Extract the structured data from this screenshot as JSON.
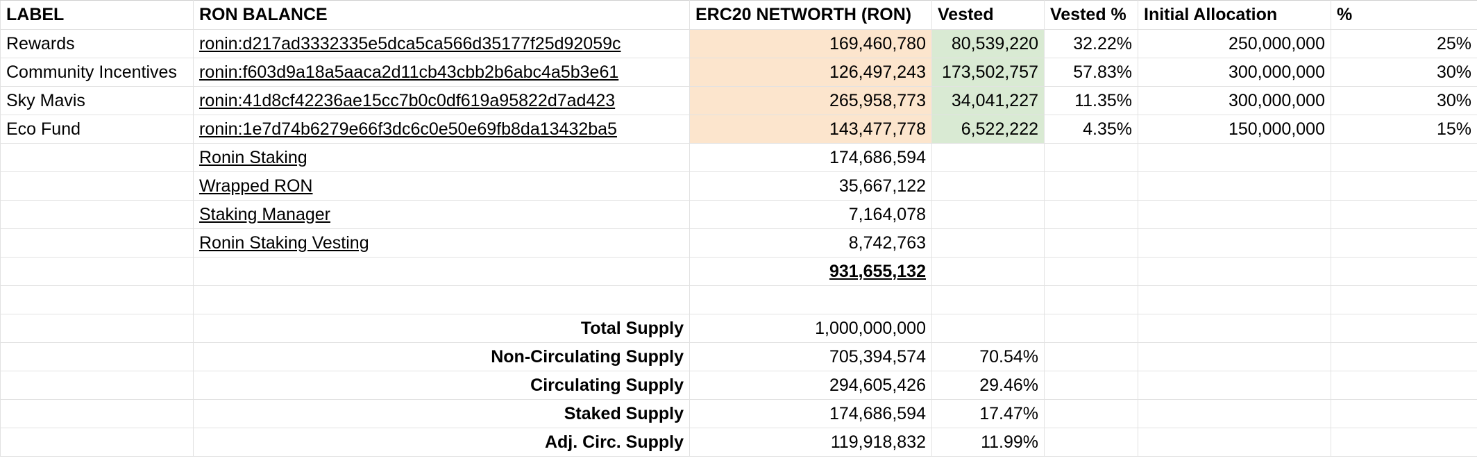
{
  "colors": {
    "networth_fill": "#fce5cd",
    "vested_fill": "#d9ead3",
    "gridline": "#e2e2e2"
  },
  "headers": {
    "label": "LABEL",
    "ron_balance": "RON BALANCE",
    "erc20_networth": "ERC20 NETWORTH (RON)",
    "vested": "Vested",
    "vested_pct": "Vested %",
    "initial_allocation": "Initial Allocation",
    "pct": "%"
  },
  "allocations": [
    {
      "label": "Rewards",
      "address": "ronin:d217ad3332335e5dca5ca566d35177f25d92059c",
      "networth": "169,460,780",
      "vested": "80,539,220",
      "vested_pct": "32.22%",
      "initial": "250,000,000",
      "pct": "25%"
    },
    {
      "label": "Community Incentives",
      "address": "ronin:f603d9a18a5aaca2d11cb43cbb2b6abc4a5b3e61",
      "networth": "126,497,243",
      "vested": "173,502,757",
      "vested_pct": "57.83%",
      "initial": "300,000,000",
      "pct": "30%"
    },
    {
      "label": "Sky Mavis",
      "address": "ronin:41d8cf42236ae15cc7b0c0df619a95822d7ad423",
      "networth": "265,958,773",
      "vested": "34,041,227",
      "vested_pct": "11.35%",
      "initial": "300,000,000",
      "pct": "30%"
    },
    {
      "label": "Eco Fund",
      "address": "ronin:1e7d74b6279e66f3dc6c0e50e69fb8da13432ba5",
      "networth": "143,477,778",
      "vested": "6,522,222",
      "vested_pct": "4.35%",
      "initial": "150,000,000",
      "pct": "15%"
    }
  ],
  "contracts": [
    {
      "name": "Ronin Staking",
      "balance": "174,686,594"
    },
    {
      "name": "Wrapped RON",
      "balance": "35,667,122"
    },
    {
      "name": "Staking Manager",
      "balance": "7,164,078"
    },
    {
      "name": "Ronin Staking Vesting",
      "balance": "8,742,763"
    }
  ],
  "networth_total": "931,655,132",
  "supply": [
    {
      "label": "Total Supply",
      "value": "1,000,000,000",
      "pct": ""
    },
    {
      "label": "Non-Circulating Supply",
      "value": "705,394,574",
      "pct": "70.54%"
    },
    {
      "label": "Circulating Supply",
      "value": "294,605,426",
      "pct": "29.46%"
    },
    {
      "label": "Staked Supply",
      "value": "174,686,594",
      "pct": "17.47%"
    },
    {
      "label": "Adj. Circ. Supply",
      "value": "119,918,832",
      "pct": "11.99%"
    }
  ]
}
